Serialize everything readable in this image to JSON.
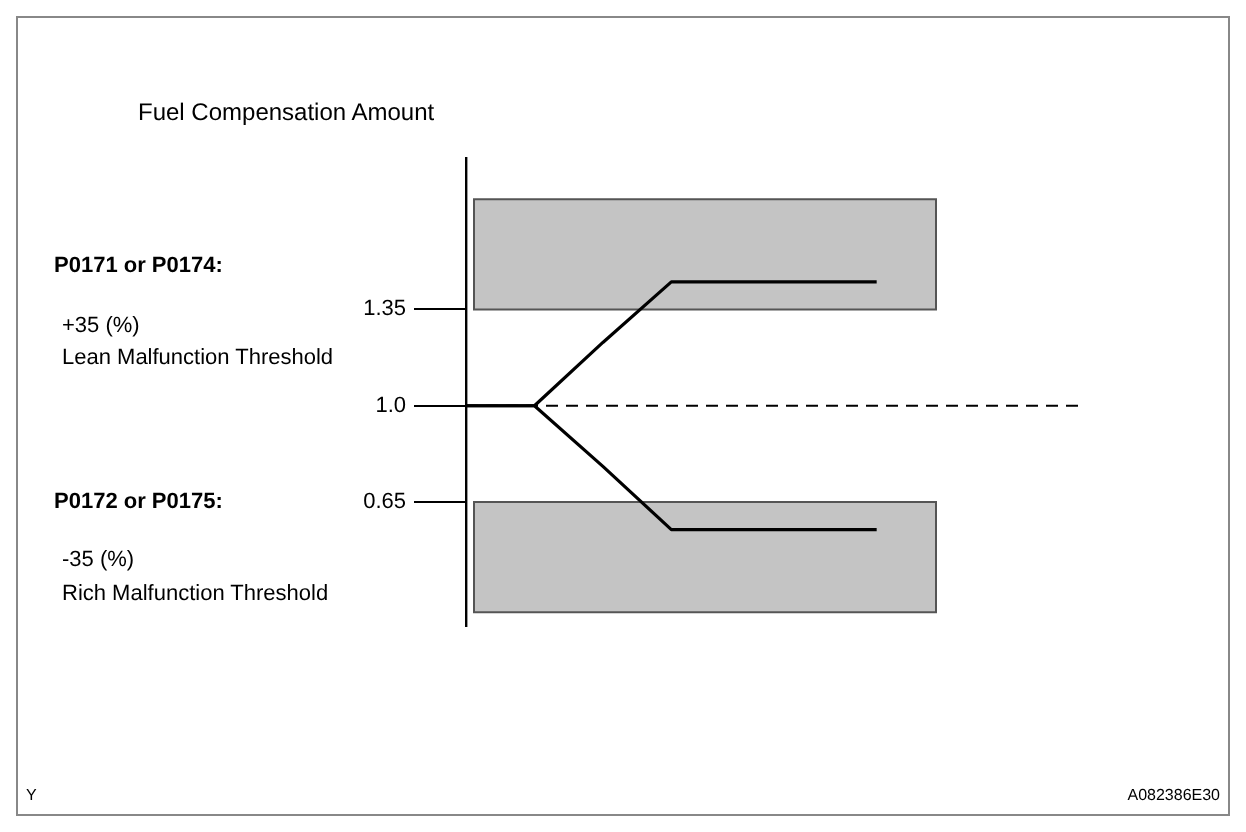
{
  "chart_data": {
    "type": "line",
    "title": "Fuel Compensation Amount",
    "categories": [
      null,
      null,
      null,
      null,
      null,
      null,
      null,
      null,
      null,
      null
    ],
    "series": [
      {
        "color": "#000000",
        "values": [
          1.0,
          1.0,
          1.23,
          1.45,
          1.45,
          1.45,
          1.45,
          null,
          null,
          null
        ]
      },
      {
        "color": "#000000",
        "values": [
          1.0,
          1.0,
          0.78,
          0.55,
          0.55,
          0.55,
          0.55,
          null,
          null,
          null
        ]
      }
    ],
    "ylim": [
      0.2,
      1.9
    ],
    "yticks": [
      0.65,
      {
        "value": 1.0,
        "label": "1.0"
      },
      1.35
    ],
    "grid": false,
    "legend": false,
    "tick_labels": "y",
    "marker": "none",
    "line_style": "solid",
    "ref_lines": [
      {
        "axis": "y",
        "value": 1.0,
        "line_style": "dashed",
        "color": "#000000"
      }
    ],
    "bands": [
      {
        "axis": "y",
        "from": 1.35,
        "to": 1.75,
        "color": "#c4c4c4"
      },
      {
        "axis": "y",
        "from": 0.25,
        "to": 0.65,
        "color": "#c4c4c4"
      }
    ],
    "annotations": [
      "P0171 or P0174:",
      "+35 (%)",
      "Lean Malfunction Threshold",
      "P0172 or P0175:",
      "-35 (%)",
      "Rich Malfunction Threshold",
      "Y",
      "A082386E30"
    ]
  }
}
